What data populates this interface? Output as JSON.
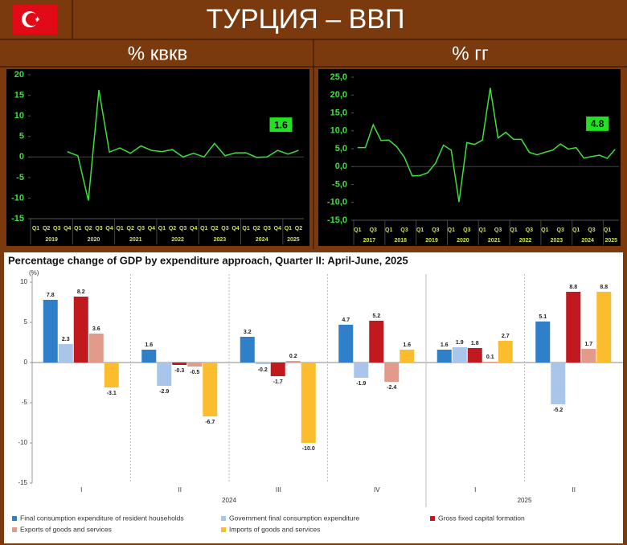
{
  "header": {
    "title": "ТУРЦИЯ – ВВП"
  },
  "chart_data": [
    {
      "type": "line",
      "title": "% квкв",
      "color": "#3ee03e",
      "categories": [
        "Q1",
        "Q2",
        "Q3",
        "Q4",
        "Q1",
        "Q2",
        "Q3",
        "Q4",
        "Q1",
        "Q2",
        "Q3",
        "Q4",
        "Q1",
        "Q2",
        "Q3",
        "Q4",
        "Q1",
        "Q2",
        "Q3",
        "Q4",
        "Q1",
        "Q2",
        "Q3",
        "Q4",
        "Q1",
        "Q2"
      ],
      "year_labels": [
        "2019",
        "2020",
        "2021",
        "2022",
        "2023",
        "2024",
        "2025"
      ],
      "values": [
        null,
        null,
        null,
        1.3,
        0.3,
        -10.6,
        16.3,
        1.2,
        2.2,
        0.9,
        2.7,
        1.6,
        1.3,
        1.8,
        0.0,
        0.9,
        0.0,
        3.3,
        0.3,
        1.0,
        1.0,
        -0.1,
        0.0,
        1.6,
        0.7,
        1.6
      ],
      "ylim": [
        -15,
        20
      ],
      "yticks": [
        -15,
        -10,
        -5,
        0,
        5,
        10,
        15,
        20
      ],
      "annotation": "1.6"
    },
    {
      "type": "line",
      "title": "% гг",
      "color": "#3ee03e",
      "categories": [
        "Q1",
        null,
        "Q3",
        null,
        "Q1",
        null,
        "Q3",
        null,
        "Q1",
        null,
        "Q3",
        null,
        "Q1",
        null,
        "Q3",
        null,
        "Q1",
        null,
        "Q3",
        null,
        "Q1",
        null,
        "Q3",
        null,
        "Q1",
        null,
        "Q3",
        null,
        "Q1",
        null,
        "Q3",
        null,
        "Q1",
        null
      ],
      "year_labels": [
        "2017",
        "2018",
        "2019",
        "2020",
        "2021",
        "2022",
        "2023",
        "2024",
        "2025"
      ],
      "values": [
        5.3,
        5.3,
        11.7,
        7.3,
        7.4,
        5.6,
        2.6,
        -2.6,
        -2.5,
        -1.7,
        1.0,
        6.0,
        4.6,
        -9.9,
        6.7,
        6.2,
        7.4,
        22.0,
        8.0,
        9.6,
        7.6,
        7.6,
        4.0,
        3.3,
        4.0,
        4.6,
        6.3,
        4.9,
        5.3,
        2.4,
        2.8,
        3.2,
        2.3,
        4.8
      ],
      "ylim": [
        -15,
        25
      ],
      "yticks": [
        {
          "value": -15,
          "label": "-15,0"
        },
        {
          "value": -10,
          "label": "-10,0"
        },
        {
          "value": -5,
          "label": "-5,0"
        },
        {
          "value": 0,
          "label": "0,0"
        },
        {
          "value": 5,
          "label": "5,0"
        },
        {
          "value": 10,
          "label": "10,0"
        },
        {
          "value": 15,
          "label": "15,0"
        },
        {
          "value": 20,
          "label": "20,0"
        },
        {
          "value": 25,
          "label": "25,0"
        }
      ],
      "annotation": "4.8"
    },
    {
      "type": "bar",
      "title": "Percentage change of GDP by expenditure approach, Quarter II: April-June, 2025",
      "y_label": "(%)",
      "categories": [
        "I",
        "II",
        "III",
        "IV",
        "I",
        "II"
      ],
      "year_labels": [
        "2024",
        "2025"
      ],
      "ylim": [
        -15,
        11
      ],
      "yticks": [
        -15,
        -10,
        -5,
        0,
        5,
        10
      ],
      "series": [
        {
          "name": "Final consumption expenditure of resident households",
          "color": "#2f7fc9",
          "values": [
            7.8,
            1.6,
            3.2,
            4.7,
            1.6,
            5.1
          ]
        },
        {
          "name": "Government final consumption expenditure",
          "color": "#a9c5ea",
          "values": [
            2.3,
            -2.9,
            -0.2,
            -1.9,
            1.9,
            -5.2
          ]
        },
        {
          "name": "Gross fixed capital formation",
          "color": "#c0191e",
          "values": [
            8.2,
            -0.3,
            -1.7,
            5.2,
            1.8,
            8.8
          ]
        },
        {
          "name": "Exports of goods and services",
          "color": "#e29a8b",
          "values": [
            3.6,
            -0.5,
            0.2,
            -2.4,
            0.1,
            1.7
          ]
        },
        {
          "name": "Imports of goods and services",
          "color": "#fbbd2d",
          "values": [
            -3.1,
            -6.7,
            -10.0,
            1.6,
            2.7,
            8.8
          ],
          "value_labels": [
            "-3.1",
            "-6.7",
            "-10.0",
            "1.6",
            "2.7",
            "8.8"
          ]
        }
      ]
    }
  ]
}
